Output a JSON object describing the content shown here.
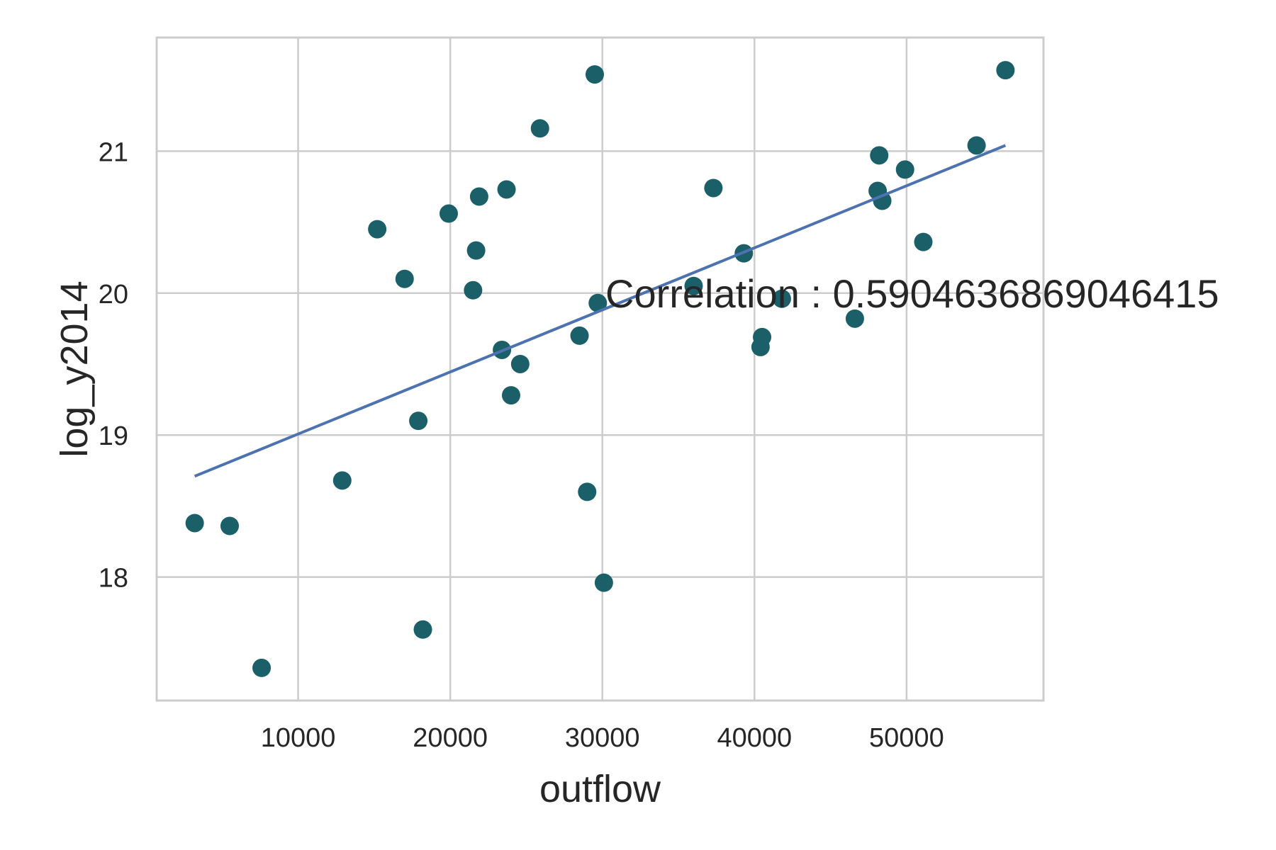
{
  "chart_data": {
    "type": "scatter",
    "title": "",
    "xlabel": "outflow",
    "ylabel": "log_y2014",
    "xlim": [
      700,
      59000
    ],
    "ylim": [
      17.13,
      21.8
    ],
    "xticks": [
      10000,
      20000,
      30000,
      40000,
      50000
    ],
    "yticks": [
      18,
      19,
      20,
      21
    ],
    "grid": true,
    "colors": {
      "points": "#1b5f69",
      "line": "#4c72b0",
      "grid": "#cccccc",
      "frame": "#cccccc"
    },
    "points": [
      {
        "x": 3200,
        "y": 18.38
      },
      {
        "x": 5500,
        "y": 18.36
      },
      {
        "x": 7600,
        "y": 17.36
      },
      {
        "x": 12900,
        "y": 18.68
      },
      {
        "x": 15200,
        "y": 20.45
      },
      {
        "x": 17000,
        "y": 20.1
      },
      {
        "x": 17900,
        "y": 19.1
      },
      {
        "x": 18200,
        "y": 17.63
      },
      {
        "x": 19900,
        "y": 20.56
      },
      {
        "x": 21500,
        "y": 20.02
      },
      {
        "x": 21700,
        "y": 20.3
      },
      {
        "x": 21900,
        "y": 20.68
      },
      {
        "x": 23400,
        "y": 19.6
      },
      {
        "x": 23700,
        "y": 20.73
      },
      {
        "x": 24000,
        "y": 19.28
      },
      {
        "x": 24600,
        "y": 19.5
      },
      {
        "x": 25900,
        "y": 21.16
      },
      {
        "x": 28500,
        "y": 19.7
      },
      {
        "x": 29000,
        "y": 18.6
      },
      {
        "x": 29500,
        "y": 21.54
      },
      {
        "x": 29700,
        "y": 19.93
      },
      {
        "x": 30100,
        "y": 17.96
      },
      {
        "x": 36000,
        "y": 20.05
      },
      {
        "x": 37300,
        "y": 20.74
      },
      {
        "x": 39300,
        "y": 20.28
      },
      {
        "x": 40400,
        "y": 19.62
      },
      {
        "x": 40500,
        "y": 19.69
      },
      {
        "x": 41800,
        "y": 19.96
      },
      {
        "x": 46600,
        "y": 19.82
      },
      {
        "x": 48100,
        "y": 20.72
      },
      {
        "x": 48200,
        "y": 20.97
      },
      {
        "x": 48400,
        "y": 20.65
      },
      {
        "x": 49900,
        "y": 20.87
      },
      {
        "x": 51100,
        "y": 20.36
      },
      {
        "x": 54600,
        "y": 21.04
      },
      {
        "x": 56500,
        "y": 21.57
      }
    ],
    "regression_line": {
      "x": [
        3200,
        56500
      ],
      "y": [
        18.71,
        21.04
      ]
    },
    "annotation": {
      "text": "Correlation : 0.5904636869046415",
      "x": 30200,
      "y": 20.0
    }
  }
}
